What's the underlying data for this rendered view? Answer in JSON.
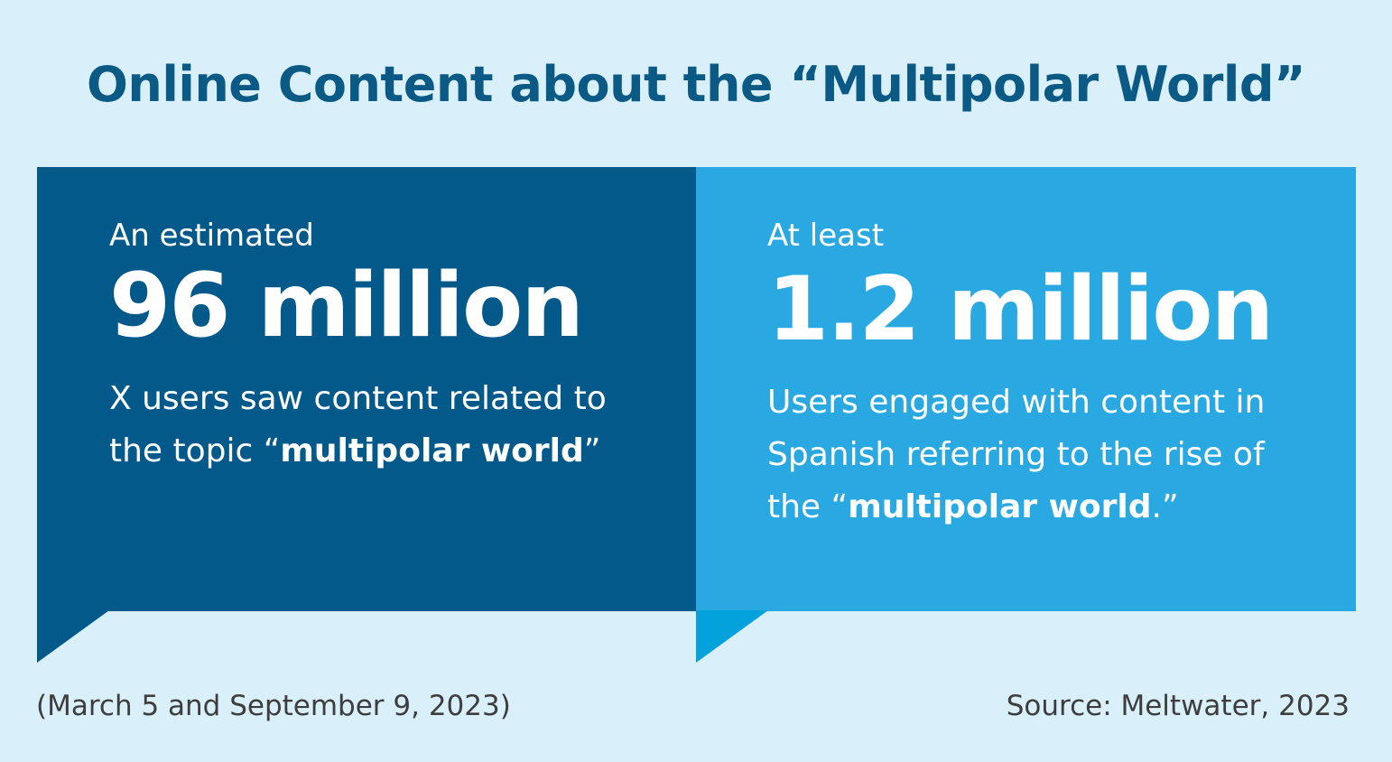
{
  "title": "Online Content about the “Multipolar World”",
  "colors": {
    "background": "#d9f0fa",
    "title": "#0b5a86",
    "left_panel": "#02598a",
    "right_panel": "#2aa8e1",
    "right_tail": "#04a2dc",
    "text": "#ffffff",
    "footer": "#3d3d3d"
  },
  "left_callout": {
    "intro": "An estimated",
    "figure": "96 million",
    "desc_before": "X users saw content related to the topic “",
    "desc_bold": "multipolar world",
    "desc_after": "”"
  },
  "right_callout": {
    "intro": "At least",
    "figure": "1.2 million",
    "desc_before": "Users engaged with content in Spanish referring to the rise of the “",
    "desc_bold": "multipolar world",
    "desc_after": ".”"
  },
  "footer": {
    "date_range": "(March 5 and September 9, 2023)",
    "source": "Source: Meltwater, 2023"
  }
}
